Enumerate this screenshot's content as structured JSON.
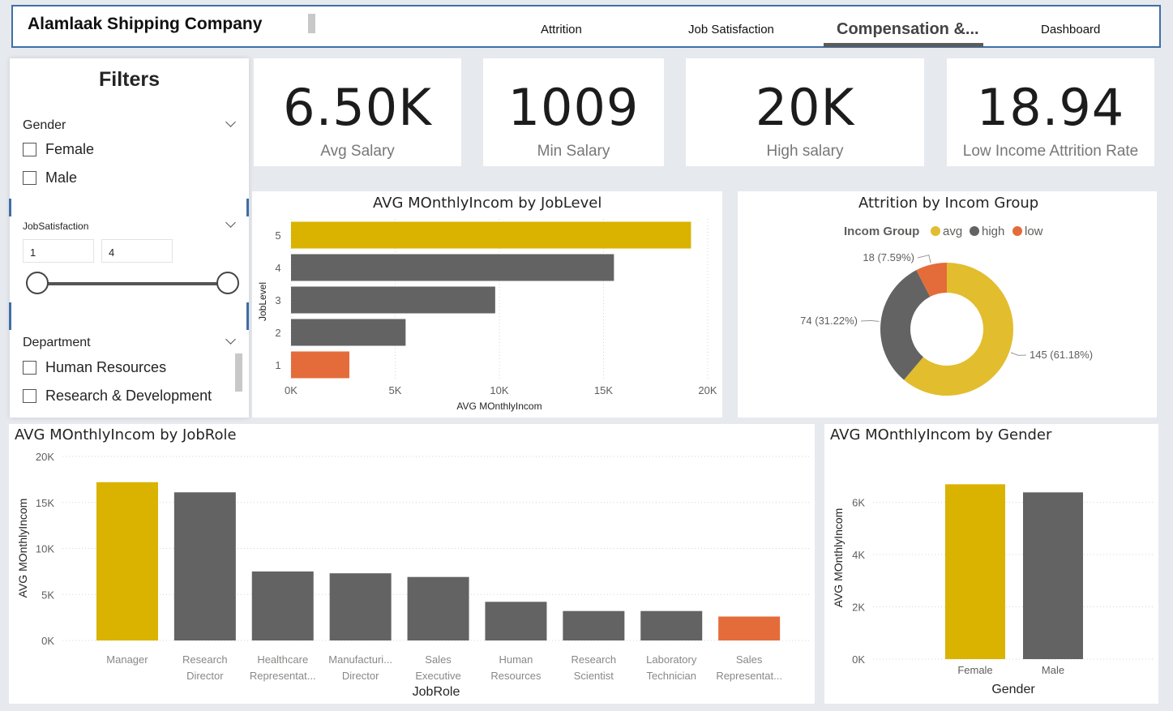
{
  "header": {
    "company": "Alamlaak Shipping Company",
    "tabs": [
      {
        "label": "Attrition",
        "active": false
      },
      {
        "label": "Job Satisfaction",
        "active": false
      },
      {
        "label": "Compensation &...",
        "active": true
      },
      {
        "label": "Dashboard",
        "active": false
      }
    ]
  },
  "filters": {
    "title": "Filters",
    "gender": {
      "label": "Gender",
      "options": [
        "Female",
        "Male"
      ]
    },
    "job_satisfaction": {
      "label": "JobSatisfaction",
      "min": "1",
      "max": "4"
    },
    "department": {
      "label": "Department",
      "options": [
        "Human Resources",
        "Research & Development"
      ]
    }
  },
  "kpis": [
    {
      "value": "6.50K",
      "label": "Avg Salary"
    },
    {
      "value": "1009",
      "label": "Min Salary"
    },
    {
      "value": "20K",
      "label": "High salary"
    },
    {
      "value": "18.94",
      "label": "Low Income Attrition Rate"
    }
  ],
  "colors": {
    "gold": "#d9b300",
    "gray": "#636363",
    "orange": "#e46c3a",
    "donut_gold": "#e2bd2e"
  },
  "chart_data": [
    {
      "type": "bar",
      "orientation": "horizontal",
      "title": "AVG MOnthlyIncom by JobLevel",
      "xlabel": "AVG MOnthlyIncom",
      "ylabel": "JobLevel",
      "categories": [
        "5",
        "4",
        "3",
        "2",
        "1"
      ],
      "values": [
        19200,
        15500,
        9800,
        5500,
        2800
      ],
      "bar_colors": [
        "#d9b300",
        "#636363",
        "#636363",
        "#636363",
        "#e46c3a"
      ],
      "xticks": [
        "0K",
        "5K",
        "10K",
        "15K",
        "20K"
      ],
      "xlim": [
        0,
        20000
      ],
      "grid": true
    },
    {
      "type": "pie",
      "donut": true,
      "title": "Attrition by Incom Group",
      "legend_title": "Incom Group",
      "legend_position": "top",
      "slices": [
        {
          "name": "avg",
          "value": 145,
          "label": "145 (61.18%)",
          "color": "#e2bd2e"
        },
        {
          "name": "high",
          "value": 74,
          "label": "74 (31.22%)",
          "color": "#636363"
        },
        {
          "name": "low",
          "value": 18,
          "label": "18 (7.59%)",
          "color": "#e46c3a"
        }
      ]
    },
    {
      "type": "bar",
      "title": "AVG MOnthlyIncom by JobRole",
      "xlabel": "JobRole",
      "ylabel": "AVG MOnthlyIncom",
      "categories": [
        [
          "Manager"
        ],
        [
          "Research",
          "Director"
        ],
        [
          "Healthcare",
          "Representat..."
        ],
        [
          "Manufacturi...",
          "Director"
        ],
        [
          "Sales",
          "Executive"
        ],
        [
          "Human",
          "Resources"
        ],
        [
          "Research",
          "Scientist"
        ],
        [
          "Laboratory",
          "Technician"
        ],
        [
          "Sales",
          "Representat..."
        ]
      ],
      "values": [
        17200,
        16100,
        7500,
        7300,
        6900,
        4200,
        3200,
        3200,
        2600
      ],
      "bar_colors": [
        "#d9b300",
        "#636363",
        "#636363",
        "#636363",
        "#636363",
        "#636363",
        "#636363",
        "#636363",
        "#e46c3a"
      ],
      "yticks": [
        "20K",
        "15K",
        "10K",
        "5K",
        "0K"
      ],
      "ylim": [
        0,
        20000
      ],
      "grid": true
    },
    {
      "type": "bar",
      "title": "AVG MOnthlyIncom by Gender",
      "xlabel": "Gender",
      "ylabel": "AVG MOnthlyIncom",
      "categories": [
        "Female",
        "Male"
      ],
      "values": [
        6690,
        6380
      ],
      "bar_colors": [
        "#d9b300",
        "#636363"
      ],
      "yticks": [
        "6K",
        "4K",
        "2K",
        "0K"
      ],
      "ylim": [
        0,
        7600
      ],
      "grid": true
    }
  ]
}
